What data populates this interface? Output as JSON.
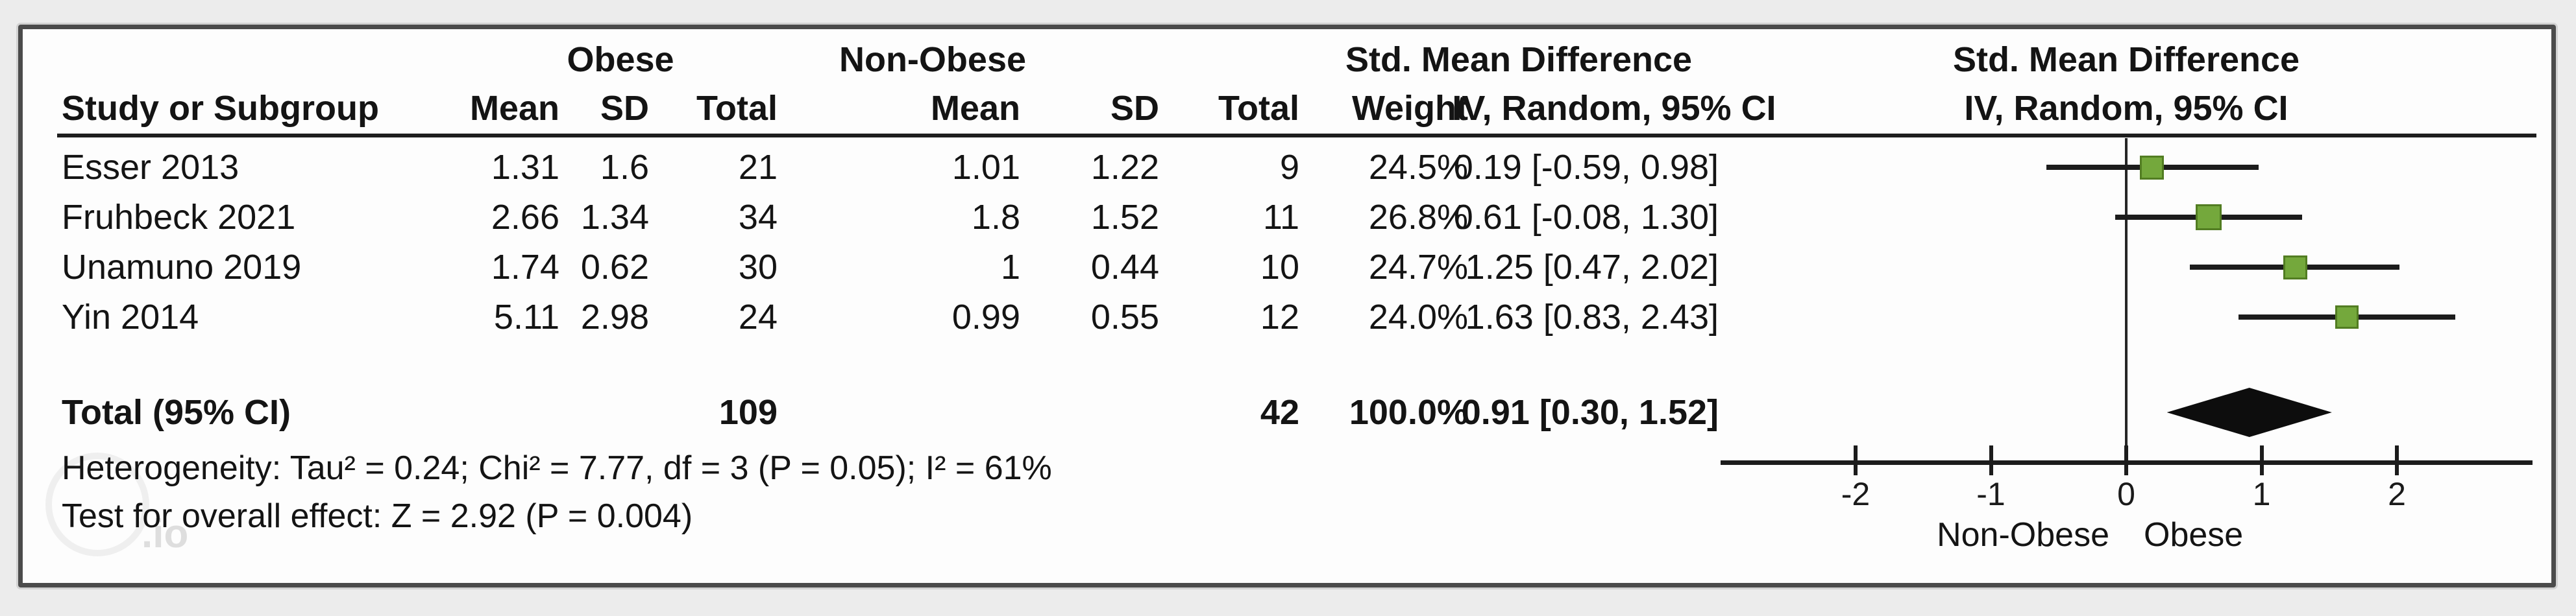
{
  "header": {
    "study": "Study or Subgroup",
    "group1": "Obese",
    "group2": "Non-Obese",
    "mean": "Mean",
    "sd": "SD",
    "total": "Total",
    "weight": "Weight",
    "smd_title": "Std. Mean Difference",
    "smd_method": "IV, Random, 95% CI"
  },
  "studies": [
    {
      "name": "Esser 2013",
      "obese": {
        "mean": "1.31",
        "sd": "1.6",
        "total": "21"
      },
      "nonobese": {
        "mean": "1.01",
        "sd": "1.22",
        "total": "9"
      },
      "weight": "24.5%",
      "ci_text": "0.19 [-0.59, 0.98]"
    },
    {
      "name": "Fruhbeck 2021",
      "obese": {
        "mean": "2.66",
        "sd": "1.34",
        "total": "34"
      },
      "nonobese": {
        "mean": "1.8",
        "sd": "1.52",
        "total": "11"
      },
      "weight": "26.8%",
      "ci_text": "0.61 [-0.08, 1.30]"
    },
    {
      "name": "Unamuno 2019",
      "obese": {
        "mean": "1.74",
        "sd": "0.62",
        "total": "30"
      },
      "nonobese": {
        "mean": "1",
        "sd": "0.44",
        "total": "10"
      },
      "weight": "24.7%",
      "ci_text": "1.25 [0.47, 2.02]"
    },
    {
      "name": "Yin 2014",
      "obese": {
        "mean": "5.11",
        "sd": "2.98",
        "total": "24"
      },
      "nonobese": {
        "mean": "0.99",
        "sd": "0.55",
        "total": "12"
      },
      "weight": "24.0%",
      "ci_text": "1.63 [0.83, 2.43]"
    }
  ],
  "total": {
    "label": "Total (95% CI)",
    "obese_total": "109",
    "nonobese_total": "42",
    "weight": "100.0%",
    "ci_text": "0.91 [0.30, 1.52]"
  },
  "stats": {
    "heterogeneity": "Heterogeneity: Tau² = 0.24; Chi² = 7.77, df = 3 (P = 0.05); I² = 61%",
    "overall": "Test for overall effect: Z = 2.92 (P = 0.004)"
  },
  "axis": {
    "label_left": "Non-Obese",
    "label_right": "Obese"
  },
  "watermark": ".io",
  "chart_data": {
    "type": "forest",
    "title": "Std. Mean Difference",
    "method": "IV, Random, 95% CI",
    "xlim": [
      -3,
      3
    ],
    "ticks": [
      -2,
      -1,
      0,
      1,
      2
    ],
    "zero_line": 0,
    "favours_left": "Non-Obese",
    "favours_right": "Obese",
    "studies": [
      {
        "name": "Esser 2013",
        "est": 0.19,
        "lo": -0.59,
        "hi": 0.98,
        "weight": 24.5
      },
      {
        "name": "Fruhbeck 2021",
        "est": 0.61,
        "lo": -0.08,
        "hi": 1.3,
        "weight": 26.8
      },
      {
        "name": "Unamuno 2019",
        "est": 1.25,
        "lo": 0.47,
        "hi": 2.02,
        "weight": 24.7
      },
      {
        "name": "Yin 2014",
        "est": 1.63,
        "lo": 0.83,
        "hi": 2.43,
        "weight": 24.0
      }
    ],
    "total": {
      "est": 0.91,
      "lo": 0.3,
      "hi": 1.52
    },
    "marker_color": "#74a83c",
    "marker_border": "#527d22",
    "line_color": "#1c1c1c",
    "diamond_color": "#0d0d0d"
  }
}
